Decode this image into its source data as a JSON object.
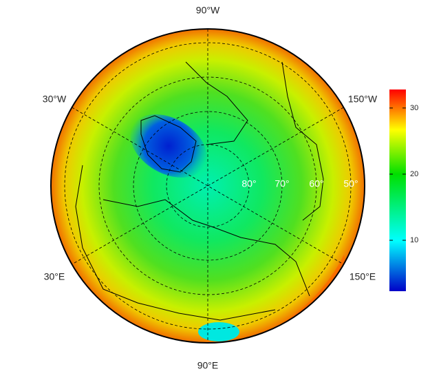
{
  "map": {
    "lon_labels": [
      "90°W",
      "30°W",
      "150°W",
      "30°E",
      "150°E",
      "90°E"
    ],
    "lat_labels": [
      "80°",
      "70°",
      "60°",
      "50°"
    ],
    "colorbar": {
      "lim": [
        2.3,
        32.8
      ],
      "ticks": [
        10,
        20,
        30
      ]
    }
  }
}
